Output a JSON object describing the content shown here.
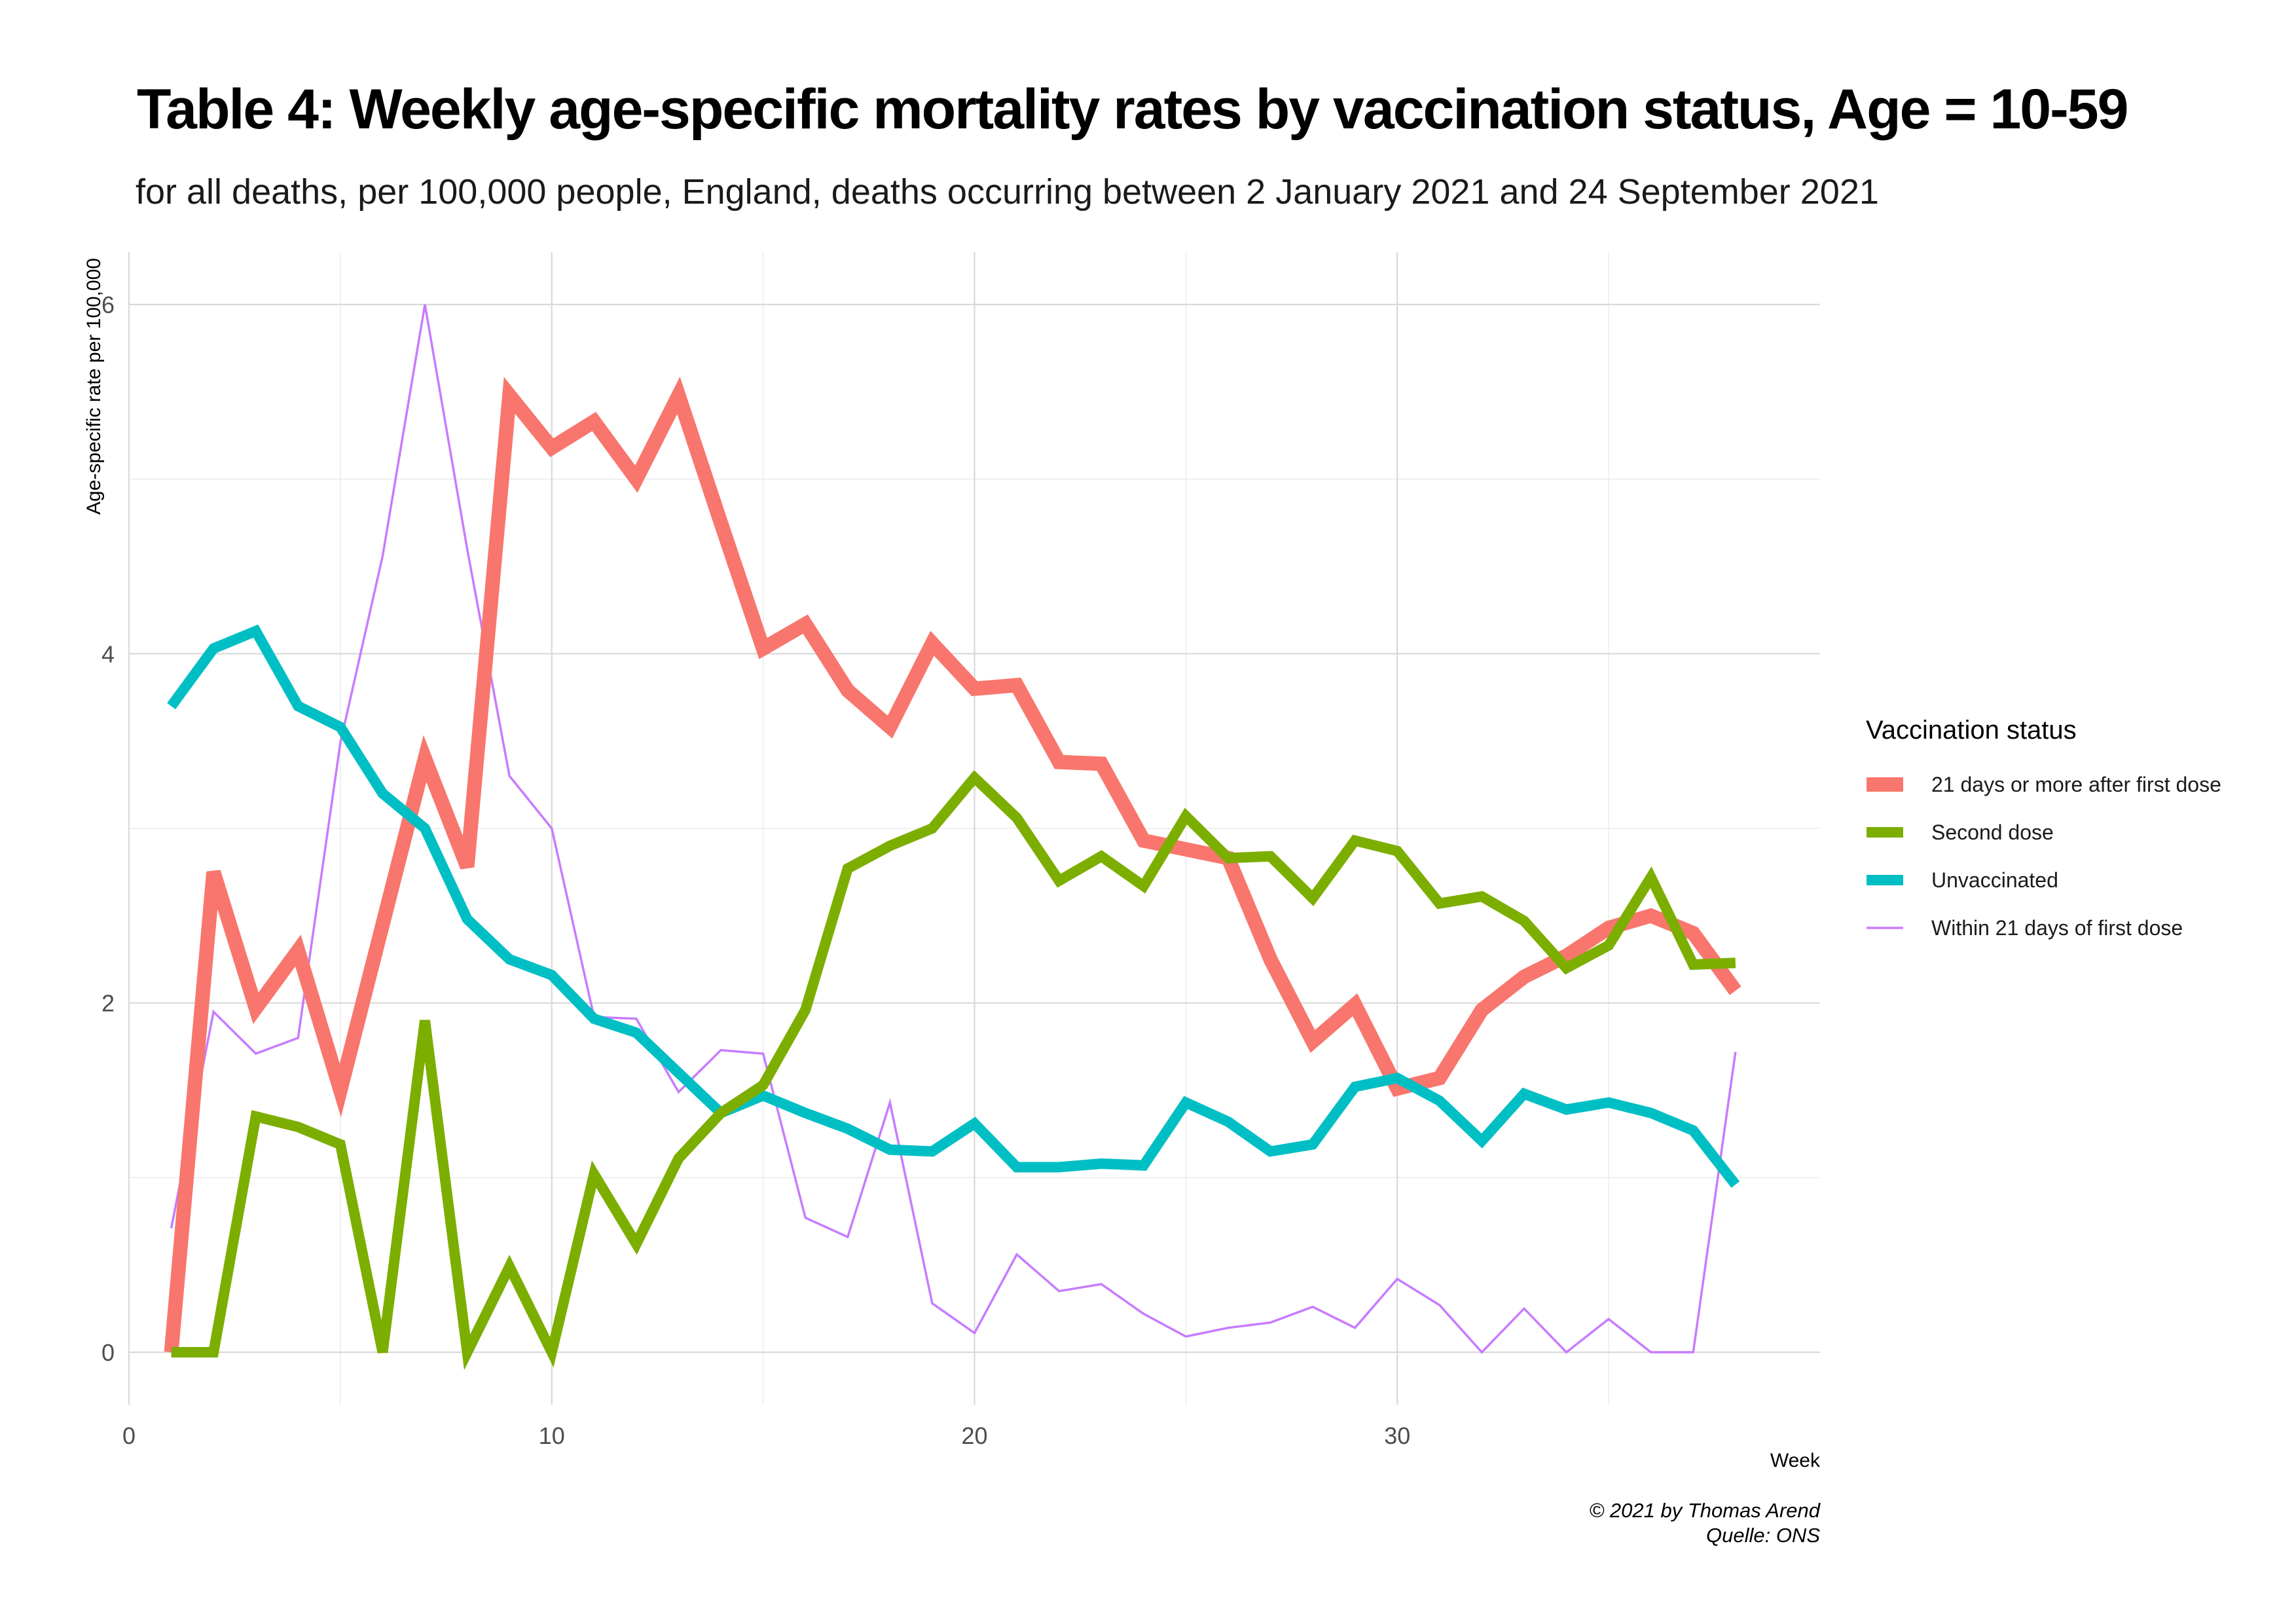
{
  "chart_data": {
    "type": "line",
    "title": "Table 4: Weekly age-specific mortality rates by vaccination status, Age = 10-59",
    "subtitle": "for all deaths, per 100,000 people, England, deaths occurring between 2 January 2021 and 24 September 2021",
    "xlabel": "Week",
    "ylabel": "Age-specific rate per 100,000",
    "xlim": [
      0,
      40
    ],
    "ylim": [
      -0.3,
      6.3
    ],
    "x_ticks": [
      0,
      10,
      20,
      30
    ],
    "y_ticks": [
      0,
      2,
      4,
      6
    ],
    "grid": true,
    "legend": {
      "title": "Vaccination status",
      "position": "right"
    },
    "caption": [
      "© 2021 by Thomas Arend",
      "Quelle: ONS"
    ],
    "x": [
      1,
      2,
      3,
      4,
      5,
      6,
      7,
      8,
      9,
      10,
      11,
      12,
      13,
      14,
      15,
      16,
      17,
      18,
      19,
      20,
      21,
      22,
      23,
      24,
      25,
      26,
      27,
      28,
      29,
      30,
      31,
      32,
      33,
      34,
      35,
      36,
      37,
      38
    ],
    "series": [
      {
        "name": "21 days or more after first dose",
        "color": "#F8766D",
        "width": "thick",
        "values": [
          0,
          2.75,
          1.97,
          2.3,
          1.5,
          2.45,
          3.4,
          2.78,
          5.48,
          5.18,
          5.33,
          5.0,
          5.48,
          4.75,
          4.03,
          4.17,
          3.79,
          3.58,
          4.06,
          3.8,
          3.82,
          3.38,
          3.37,
          2.93,
          2.88,
          2.83,
          2.25,
          1.78,
          1.99,
          1.51,
          1.57,
          1.96,
          2.15,
          2.27,
          2.43,
          2.5,
          2.4,
          2.07
        ]
      },
      {
        "name": "Second dose",
        "color": "#7CAE00",
        "width": "medium",
        "values": [
          0,
          0,
          1.35,
          1.29,
          1.19,
          0,
          1.9,
          0,
          0.49,
          0,
          1.02,
          0.62,
          1.11,
          1.37,
          1.53,
          1.96,
          2.77,
          2.9,
          3.0,
          3.29,
          3.06,
          2.7,
          2.84,
          2.67,
          3.07,
          2.83,
          2.84,
          2.6,
          2.93,
          2.87,
          2.57,
          2.61,
          2.47,
          2.2,
          2.33,
          2.72,
          2.22,
          2.23
        ]
      },
      {
        "name": "Unvaccinated",
        "color": "#00BFC4",
        "width": "medium",
        "values": [
          3.7,
          4.03,
          4.13,
          3.7,
          3.58,
          3.2,
          3.0,
          2.48,
          2.25,
          2.16,
          1.91,
          1.83,
          1.6,
          1.37,
          1.47,
          1.37,
          1.28,
          1.16,
          1.15,
          1.31,
          1.06,
          1.06,
          1.08,
          1.07,
          1.43,
          1.32,
          1.15,
          1.19,
          1.52,
          1.57,
          1.44,
          1.21,
          1.48,
          1.39,
          1.43,
          1.37,
          1.27,
          0.96
        ]
      },
      {
        "name": "Within 21 days of first dose",
        "color": "#C77CFF",
        "width": "thin",
        "values": [
          0.71,
          1.95,
          1.71,
          1.8,
          3.49,
          4.56,
          6.0,
          4.6,
          3.3,
          3.0,
          1.92,
          1.91,
          1.49,
          1.73,
          1.71,
          0.77,
          0.66,
          1.43,
          0.28,
          0.11,
          0.56,
          0.35,
          0.39,
          0.22,
          0.09,
          0.14,
          0.17,
          0.26,
          0.14,
          0.42,
          0.27,
          0,
          0.25,
          0,
          0.19,
          0,
          0,
          1.72
        ]
      }
    ]
  }
}
